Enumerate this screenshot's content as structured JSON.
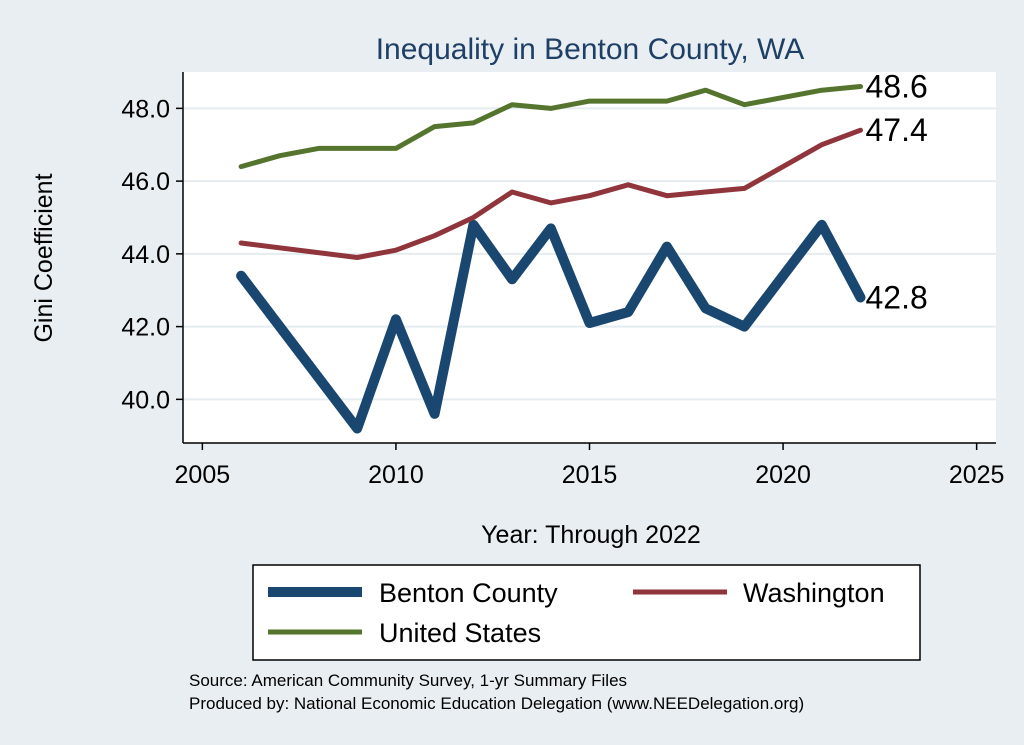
{
  "chart_data": {
    "type": "line",
    "title": "Inequality in Benton County, WA",
    "xlabel": "Year: Through 2022",
    "ylabel": "Gini Coefficient",
    "xlim": [
      2004.5,
      2025.5
    ],
    "ylim": [
      38.8,
      49.0
    ],
    "xticks": [
      2005,
      2010,
      2015,
      2020,
      2025
    ],
    "yticks": [
      40,
      42,
      44,
      46,
      48
    ],
    "ytick_labels": [
      "40.0",
      "42.0",
      "44.0",
      "46.0",
      "48.0"
    ],
    "grid": true,
    "legend_position": "bottom",
    "series": [
      {
        "name": "Benton County",
        "color": "#1a476f",
        "x": [
          2006,
          2009,
          2010,
          2011,
          2012,
          2013,
          2014,
          2015,
          2016,
          2017,
          2018,
          2019,
          2021,
          2022
        ],
        "y": [
          43.4,
          39.2,
          42.2,
          39.6,
          44.8,
          43.3,
          44.7,
          42.1,
          42.4,
          44.2,
          42.5,
          42.0,
          44.8,
          42.8
        ],
        "end_label": "42.8"
      },
      {
        "name": "Washington",
        "color": "#90353b",
        "x": [
          2006,
          2009,
          2010,
          2011,
          2012,
          2013,
          2014,
          2015,
          2016,
          2017,
          2018,
          2019,
          2021,
          2022
        ],
        "y": [
          44.3,
          43.9,
          44.1,
          44.5,
          45.0,
          45.7,
          45.4,
          45.6,
          45.9,
          45.6,
          45.7,
          45.8,
          47.0,
          47.4
        ],
        "end_label": "47.4"
      },
      {
        "name": "United States",
        "color": "#55752f",
        "x": [
          2006,
          2007,
          2008,
          2009,
          2010,
          2011,
          2012,
          2013,
          2014,
          2015,
          2016,
          2017,
          2018,
          2019,
          2021,
          2022
        ],
        "y": [
          46.4,
          46.7,
          46.9,
          46.9,
          46.9,
          47.5,
          47.6,
          48.1,
          48.0,
          48.2,
          48.2,
          48.2,
          48.5,
          48.1,
          48.5,
          48.6
        ],
        "end_label": "48.6"
      }
    ],
    "source_lines": [
      "Source: American Community Survey, 1-yr Summary Files",
      "Produced by: National Economic Education Delegation (www.NEEDelegation.org)"
    ]
  }
}
